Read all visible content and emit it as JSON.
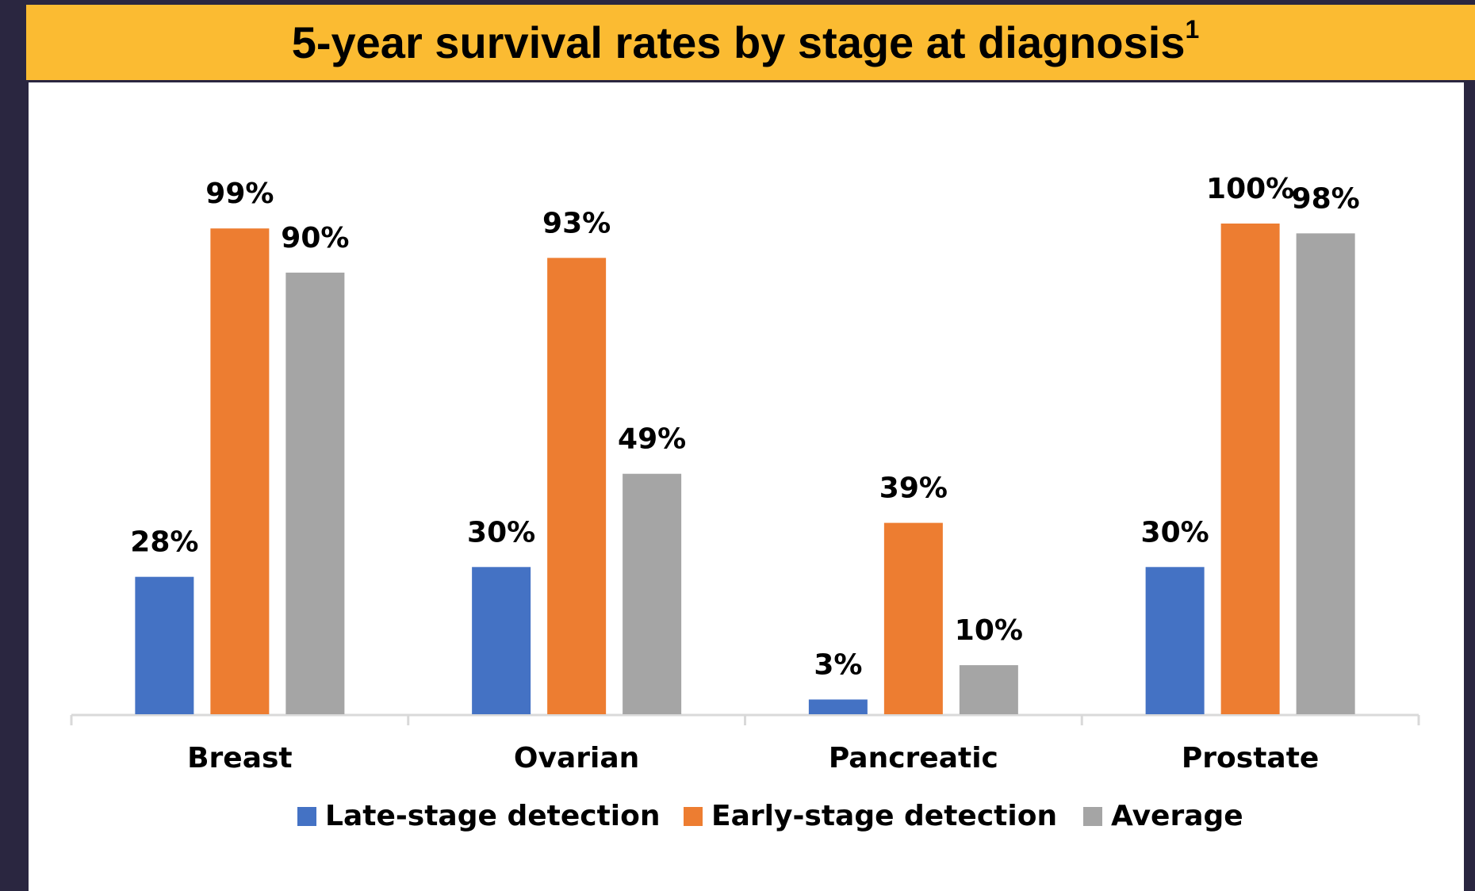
{
  "chart_data": {
    "type": "bar",
    "title": "5-year survival rates by stage at diagnosis",
    "title_note": "1",
    "categories": [
      "Breast",
      "Ovarian",
      "Pancreatic",
      "Prostate"
    ],
    "series": [
      {
        "name": "Late-stage detection",
        "color": "#4472c4",
        "values": [
          28,
          30,
          3,
          30
        ],
        "value_labels": [
          "28%",
          "30%",
          "3%",
          "30%"
        ]
      },
      {
        "name": "Early-stage detection",
        "color": "#ed7d31",
        "values": [
          99,
          93,
          39,
          100
        ],
        "value_labels": [
          "99%",
          "93%",
          "39%",
          "100%"
        ]
      },
      {
        "name": "Average",
        "color": "#a5a5a5",
        "values": [
          90,
          49,
          10,
          98
        ],
        "value_labels": [
          "90%",
          "49%",
          "10%",
          "98%"
        ]
      }
    ]
  }
}
